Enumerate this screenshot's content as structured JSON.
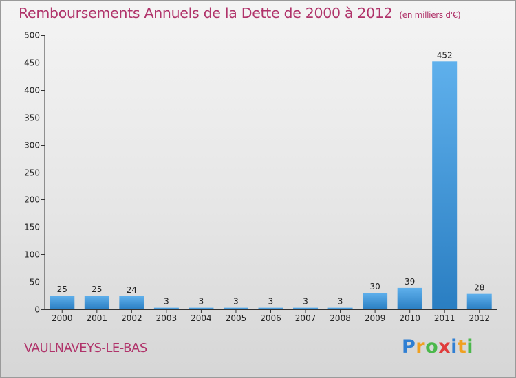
{
  "chart_data": {
    "type": "bar",
    "title": "Remboursements Annuels de la Dette de 2000 à 2012",
    "subtitle": "(en milliers d'€)",
    "categories": [
      "2000",
      "2001",
      "2002",
      "2003",
      "2004",
      "2005",
      "2006",
      "2007",
      "2008",
      "2009",
      "2010",
      "2011",
      "2012"
    ],
    "values": [
      25,
      25,
      24,
      3,
      3,
      3,
      3,
      3,
      3,
      30,
      39,
      452,
      28
    ],
    "xlabel": "",
    "ylabel": "",
    "ylim": [
      0,
      500
    ],
    "yticks": [
      0,
      50,
      100,
      150,
      200,
      250,
      300,
      350,
      400,
      450,
      500
    ],
    "grid": false
  },
  "footer": {
    "commune": "VAULNAVEYS-LE-BAS"
  },
  "logo": {
    "letters": [
      "P",
      "r",
      "o",
      "x",
      "i",
      "t",
      "i"
    ],
    "colors": [
      "#2f7fd3",
      "#f0a020",
      "#4bb84b",
      "#e03c3c",
      "#2f7fd3",
      "#f0a020",
      "#4bb84b"
    ]
  },
  "colors": {
    "title": "#b0336a",
    "bar_top": "#5fb0ec",
    "bar_bottom": "#2a7ec2"
  }
}
